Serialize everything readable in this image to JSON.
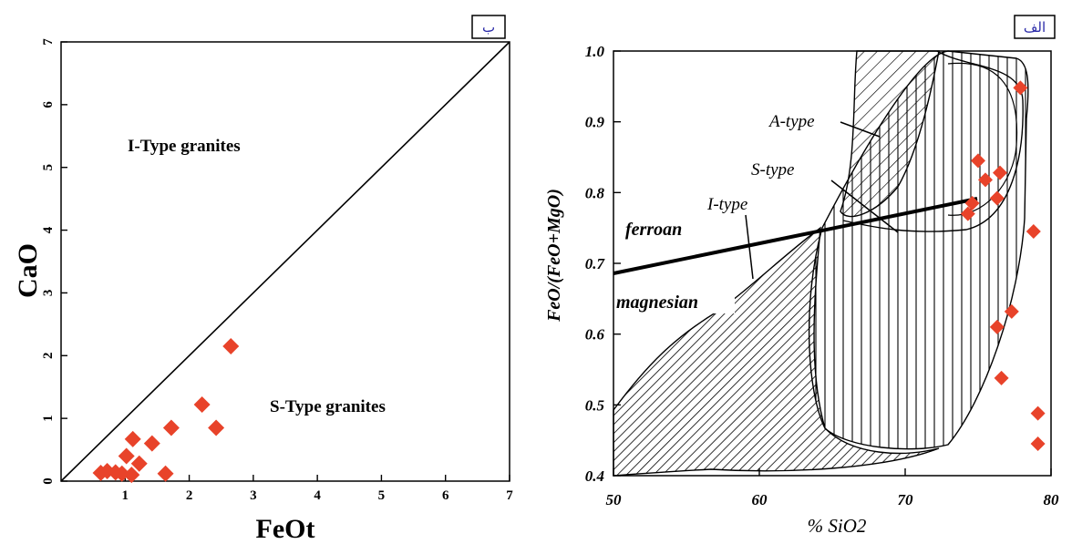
{
  "chart_data": [
    {
      "type": "scatter",
      "panel_tag": "ب",
      "xlabel": "FeOt",
      "ylabel": "CaO",
      "xlim": [
        0,
        7
      ],
      "ylim": [
        0,
        7
      ],
      "x_ticks": [
        "1",
        "2",
        "3",
        "4",
        "5",
        "6",
        "7"
      ],
      "y_ticks": [
        "0",
        "1",
        "2",
        "3",
        "4",
        "5",
        "6",
        "7"
      ],
      "region_labels": [
        "I-Type granites",
        "S-Type granites"
      ],
      "divider_line": [
        [
          0,
          0
        ],
        [
          7,
          7
        ]
      ],
      "marker_color": "#e8432a",
      "points": [
        {
          "x": 0.62,
          "y": 0.13
        },
        {
          "x": 0.72,
          "y": 0.16
        },
        {
          "x": 0.85,
          "y": 0.14
        },
        {
          "x": 0.95,
          "y": 0.12
        },
        {
          "x": 1.02,
          "y": 0.4
        },
        {
          "x": 1.1,
          "y": 0.1
        },
        {
          "x": 1.12,
          "y": 0.67
        },
        {
          "x": 1.22,
          "y": 0.28
        },
        {
          "x": 1.42,
          "y": 0.6
        },
        {
          "x": 1.63,
          "y": 0.12
        },
        {
          "x": 1.72,
          "y": 0.85
        },
        {
          "x": 2.2,
          "y": 1.22
        },
        {
          "x": 2.42,
          "y": 0.85
        },
        {
          "x": 2.65,
          "y": 2.15
        }
      ]
    },
    {
      "type": "scatter",
      "panel_tag": "الف",
      "xlabel": "% SiO2",
      "ylabel": "FeO/(FeO+MgO)",
      "xlim": [
        50,
        80
      ],
      "ylim": [
        0.4,
        1.0
      ],
      "x_ticks": [
        "50",
        "60",
        "70",
        "80"
      ],
      "y_ticks": [
        "0.4",
        "0.5",
        "0.6",
        "0.7",
        "0.8",
        "0.9",
        "1.0"
      ],
      "region_labels": [
        "A-type",
        "S-type",
        "I-type",
        "ferroan",
        "magnesian"
      ],
      "marker_color": "#e8432a",
      "points": [
        {
          "x": 77.9,
          "y": 0.948
        },
        {
          "x": 75.0,
          "y": 0.845
        },
        {
          "x": 75.5,
          "y": 0.818
        },
        {
          "x": 76.5,
          "y": 0.828
        },
        {
          "x": 76.3,
          "y": 0.792
        },
        {
          "x": 74.6,
          "y": 0.785
        },
        {
          "x": 74.3,
          "y": 0.77
        },
        {
          "x": 78.8,
          "y": 0.745
        },
        {
          "x": 77.3,
          "y": 0.632
        },
        {
          "x": 76.3,
          "y": 0.61
        },
        {
          "x": 76.6,
          "y": 0.538
        },
        {
          "x": 79.1,
          "y": 0.488
        },
        {
          "x": 79.1,
          "y": 0.445
        }
      ]
    }
  ]
}
